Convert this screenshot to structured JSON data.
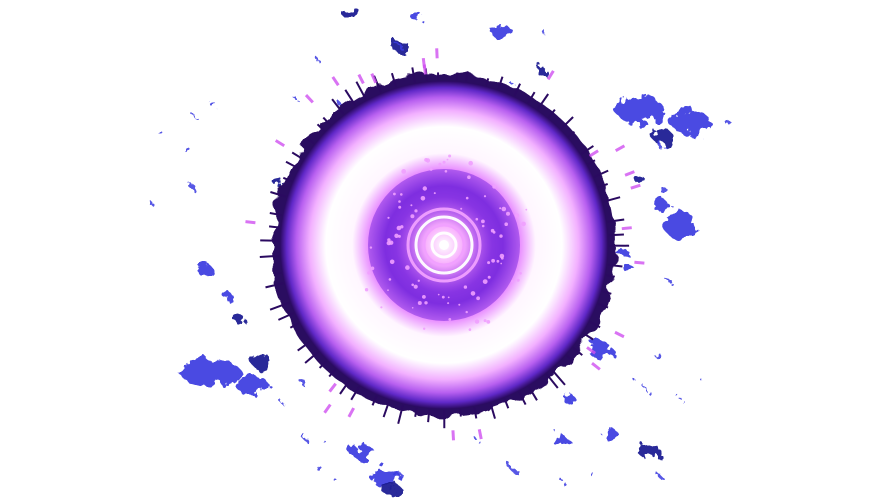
{
  "image": {
    "subject": "energy-ring-burst",
    "background_color": "#ffffff",
    "colors": {
      "core_white": "#ffffff",
      "pink_glow": "#f0a0ff",
      "magenta": "#d050f0",
      "violet": "#8030e0",
      "deep_indigo": "#2a0a60",
      "splatter_blue": "#3a3ae0",
      "splatter_dark": "#1a1a90"
    }
  }
}
